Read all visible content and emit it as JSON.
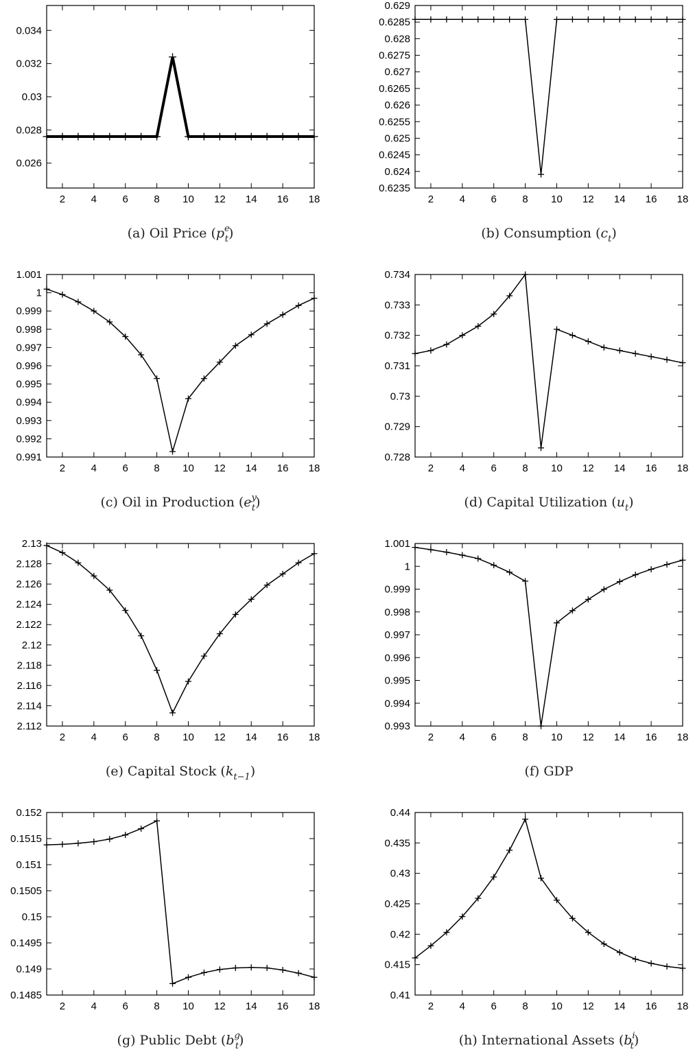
{
  "chart_data": [
    {
      "type": "line",
      "caption": "(a) Oil Price (p_t^e)",
      "caption_parts": {
        "pre": "(a)  Oil Price (",
        "sym": "p",
        "sub": "t",
        "sup": "e",
        "post": ")"
      },
      "x": [
        1,
        2,
        3,
        4,
        5,
        6,
        7,
        8,
        9,
        10,
        11,
        12,
        13,
        14,
        15,
        16,
        17,
        18
      ],
      "series": [
        {
          "values": [
            0.0276,
            0.0276,
            0.0276,
            0.0276,
            0.0276,
            0.0276,
            0.0276,
            0.0276,
            0.0324,
            0.0276,
            0.0276,
            0.0276,
            0.0276,
            0.0276,
            0.0276,
            0.0276,
            0.0276,
            0.0276
          ]
        }
      ],
      "xlim": [
        1,
        18
      ],
      "ylim": [
        0.0245,
        0.0355
      ],
      "xticks": [
        2,
        4,
        6,
        8,
        10,
        12,
        14,
        16,
        18
      ],
      "xtick_labels": [
        "2",
        "4",
        "6",
        "8",
        "10",
        "12",
        "14",
        "16",
        "18"
      ],
      "yticks": [
        0.026,
        0.028,
        0.03,
        0.032,
        0.034
      ],
      "ytick_labels": [
        "0.026",
        "0.028",
        "0.03",
        "0.032",
        "0.034"
      ],
      "thick": true
    },
    {
      "type": "line",
      "caption": "(b) Consumption (c_t)",
      "caption_parts": {
        "pre": "(b)  Consumption (",
        "sym": "c",
        "sub": "t",
        "sup": "",
        "post": ")"
      },
      "x": [
        1,
        2,
        3,
        4,
        5,
        6,
        7,
        8,
        9,
        10,
        11,
        12,
        13,
        14,
        15,
        16,
        17,
        18
      ],
      "series": [
        {
          "values": [
            0.62858,
            0.62858,
            0.62858,
            0.62858,
            0.62858,
            0.62858,
            0.62858,
            0.62858,
            0.62391,
            0.62858,
            0.62858,
            0.62858,
            0.62858,
            0.62858,
            0.62858,
            0.62858,
            0.62858,
            0.62858
          ]
        }
      ],
      "xlim": [
        1,
        18
      ],
      "ylim": [
        0.6235,
        0.629
      ],
      "xticks": [
        2,
        4,
        6,
        8,
        10,
        12,
        14,
        16,
        18
      ],
      "xtick_labels": [
        "2",
        "4",
        "6",
        "8",
        "10",
        "12",
        "14",
        "16",
        "18"
      ],
      "yticks": [
        0.6235,
        0.624,
        0.6245,
        0.625,
        0.6255,
        0.626,
        0.6265,
        0.627,
        0.6275,
        0.628,
        0.6285,
        0.629
      ],
      "ytick_labels": [
        "0.6235",
        "0.624",
        "0.6245",
        "0.625",
        "0.6255",
        "0.626",
        "0.6265",
        "0.627",
        "0.6275",
        "0.628",
        "0.6285",
        "0.629"
      ],
      "thick": false
    },
    {
      "type": "line",
      "caption": "(c) Oil in Production (e_t^y)",
      "caption_parts": {
        "pre": "(c)  Oil in Production (",
        "sym": "e",
        "sub": "t",
        "sup": "y",
        "post": ")"
      },
      "x": [
        1,
        2,
        3,
        4,
        5,
        6,
        7,
        8,
        9,
        10,
        11,
        12,
        13,
        14,
        15,
        16,
        17,
        18
      ],
      "series": [
        {
          "values": [
            1.0002,
            0.9999,
            0.9995,
            0.999,
            0.9984,
            0.9976,
            0.9966,
            0.9953,
            0.9913,
            0.9942,
            0.9953,
            0.9962,
            0.9971,
            0.9977,
            0.9983,
            0.9988,
            0.9993,
            0.9997
          ]
        }
      ],
      "xlim": [
        1,
        18
      ],
      "ylim": [
        0.991,
        1.001
      ],
      "xticks": [
        2,
        4,
        6,
        8,
        10,
        12,
        14,
        16,
        18
      ],
      "xtick_labels": [
        "2",
        "4",
        "6",
        "8",
        "10",
        "12",
        "14",
        "16",
        "18"
      ],
      "yticks": [
        0.991,
        0.992,
        0.993,
        0.994,
        0.995,
        0.996,
        0.997,
        0.998,
        0.999,
        1,
        1.001
      ],
      "ytick_labels": [
        "0.991",
        "0.992",
        "0.993",
        "0.994",
        "0.995",
        "0.996",
        "0.997",
        "0.998",
        "0.999",
        "1",
        "1.001"
      ],
      "thick": false
    },
    {
      "type": "line",
      "caption": "(d) Capital Utilization (u_t)",
      "caption_parts": {
        "pre": "(d)  Capital Utilization (",
        "sym": "u",
        "sub": "t",
        "sup": "",
        "post": ")"
      },
      "x": [
        1,
        2,
        3,
        4,
        5,
        6,
        7,
        8,
        9,
        10,
        11,
        12,
        13,
        14,
        15,
        16,
        17,
        18
      ],
      "series": [
        {
          "values": [
            0.7314,
            0.7315,
            0.7317,
            0.732,
            0.7323,
            0.7327,
            0.7333,
            0.734,
            0.7283,
            0.7322,
            0.732,
            0.7318,
            0.7316,
            0.7315,
            0.7314,
            0.7313,
            0.7312,
            0.7311
          ]
        }
      ],
      "xlim": [
        1,
        18
      ],
      "ylim": [
        0.728,
        0.734
      ],
      "xticks": [
        2,
        4,
        6,
        8,
        10,
        12,
        14,
        16,
        18
      ],
      "xtick_labels": [
        "2",
        "4",
        "6",
        "8",
        "10",
        "12",
        "14",
        "16",
        "18"
      ],
      "yticks": [
        0.728,
        0.729,
        0.73,
        0.731,
        0.732,
        0.733,
        0.734
      ],
      "ytick_labels": [
        "0.728",
        "0.729",
        "0.73",
        "0.731",
        "0.732",
        "0.733",
        "0.734"
      ],
      "thick": false
    },
    {
      "type": "line",
      "caption": "(e) Capital Stock (k_{t-1})",
      "caption_parts": {
        "pre": "(e)  Capital Stock (",
        "sym": "k",
        "sub": "t−1",
        "sup": "",
        "post": ")"
      },
      "x": [
        1,
        2,
        3,
        4,
        5,
        6,
        7,
        8,
        9,
        10,
        11,
        12,
        13,
        14,
        15,
        16,
        17,
        18
      ],
      "series": [
        {
          "values": [
            2.1298,
            2.1291,
            2.1281,
            2.1268,
            2.1254,
            2.1234,
            2.1209,
            2.1175,
            2.1133,
            2.1164,
            2.1189,
            2.1211,
            2.123,
            2.1245,
            2.1259,
            2.127,
            2.1281,
            2.129
          ]
        }
      ],
      "xlim": [
        1,
        18
      ],
      "ylim": [
        2.112,
        2.13
      ],
      "xticks": [
        2,
        4,
        6,
        8,
        10,
        12,
        14,
        16,
        18
      ],
      "xtick_labels": [
        "2",
        "4",
        "6",
        "8",
        "10",
        "12",
        "14",
        "16",
        "18"
      ],
      "yticks": [
        2.112,
        2.114,
        2.116,
        2.118,
        2.12,
        2.122,
        2.124,
        2.126,
        2.128,
        2.13
      ],
      "ytick_labels": [
        "2.112",
        "2.114",
        "2.116",
        "2.118",
        "2.12",
        "2.122",
        "2.124",
        "2.126",
        "2.128",
        "2.13"
      ],
      "thick": false
    },
    {
      "type": "line",
      "caption": "(f) GDP",
      "caption_parts": {
        "pre": "(f)  GDP",
        "sym": "",
        "sub": "",
        "sup": "",
        "post": ""
      },
      "x": [
        1,
        2,
        3,
        4,
        5,
        6,
        7,
        8,
        9,
        10,
        11,
        12,
        13,
        14,
        15,
        16,
        17,
        18
      ],
      "series": [
        {
          "values": [
            1.00083,
            1.00073,
            1.00062,
            1.00049,
            1.00034,
            1.00005,
            0.99974,
            0.99935,
            0.993,
            0.99752,
            0.99806,
            0.99855,
            0.99899,
            0.99933,
            0.99963,
            0.99987,
            1.00008,
            1.00027
          ]
        }
      ],
      "xlim": [
        1,
        18
      ],
      "ylim": [
        0.993,
        1.001
      ],
      "xticks": [
        2,
        4,
        6,
        8,
        10,
        12,
        14,
        16,
        18
      ],
      "xtick_labels": [
        "2",
        "4",
        "6",
        "8",
        "10",
        "12",
        "14",
        "16",
        "18"
      ],
      "yticks": [
        0.993,
        0.994,
        0.995,
        0.996,
        0.997,
        0.998,
        0.999,
        1,
        1.001
      ],
      "ytick_labels": [
        "0.993",
        "0.994",
        "0.995",
        "0.996",
        "0.997",
        "0.998",
        "0.999",
        "1",
        "1.001"
      ],
      "thick": false
    },
    {
      "type": "line",
      "caption": "(g) Public Debt (b_t^g)",
      "caption_parts": {
        "pre": "(g)  Public Debt (",
        "sym": "b",
        "sub": "t",
        "sup": "g",
        "post": ")"
      },
      "x": [
        1,
        2,
        3,
        4,
        5,
        6,
        7,
        8,
        9,
        10,
        11,
        12,
        13,
        14,
        15,
        16,
        17,
        18
      ],
      "series": [
        {
          "values": [
            0.15138,
            0.15139,
            0.15141,
            0.15144,
            0.15149,
            0.15157,
            0.15169,
            0.15184,
            0.14872,
            0.14884,
            0.14893,
            0.14899,
            0.14902,
            0.14903,
            0.14902,
            0.14898,
            0.14892,
            0.14884
          ]
        }
      ],
      "xlim": [
        1,
        18
      ],
      "ylim": [
        0.1485,
        0.152
      ],
      "xticks": [
        2,
        4,
        6,
        8,
        10,
        12,
        14,
        16,
        18
      ],
      "xtick_labels": [
        "2",
        "4",
        "6",
        "8",
        "10",
        "12",
        "14",
        "16",
        "18"
      ],
      "yticks": [
        0.1485,
        0.149,
        0.1495,
        0.15,
        0.1505,
        0.151,
        0.1515,
        0.152
      ],
      "ytick_labels": [
        "0.1485",
        "0.149",
        "0.1495",
        "0.15",
        "0.1505",
        "0.151",
        "0.1515",
        "0.152"
      ],
      "thick": false
    },
    {
      "type": "line",
      "caption": "(h) International Assets (b_t^i)",
      "caption_parts": {
        "pre": "(h)  International Assets (",
        "sym": "b",
        "sub": "t",
        "sup": "i",
        "post": ")"
      },
      "x": [
        1,
        2,
        3,
        4,
        5,
        6,
        7,
        8,
        9,
        10,
        11,
        12,
        13,
        14,
        15,
        16,
        17,
        18
      ],
      "series": [
        {
          "values": [
            0.4161,
            0.4181,
            0.4203,
            0.4229,
            0.4259,
            0.4294,
            0.4338,
            0.4389,
            0.4292,
            0.4256,
            0.4226,
            0.4203,
            0.4184,
            0.417,
            0.4159,
            0.4152,
            0.4147,
            0.4144
          ]
        }
      ],
      "xlim": [
        1,
        18
      ],
      "ylim": [
        0.41,
        0.44
      ],
      "xticks": [
        2,
        4,
        6,
        8,
        10,
        12,
        14,
        16,
        18
      ],
      "xtick_labels": [
        "2",
        "4",
        "6",
        "8",
        "10",
        "12",
        "14",
        "16",
        "18"
      ],
      "yticks": [
        0.41,
        0.415,
        0.42,
        0.425,
        0.43,
        0.435,
        0.44
      ],
      "ytick_labels": [
        "0.41",
        "0.415",
        "0.42",
        "0.425",
        "0.43",
        "0.435",
        "0.44"
      ],
      "thick": false
    }
  ]
}
